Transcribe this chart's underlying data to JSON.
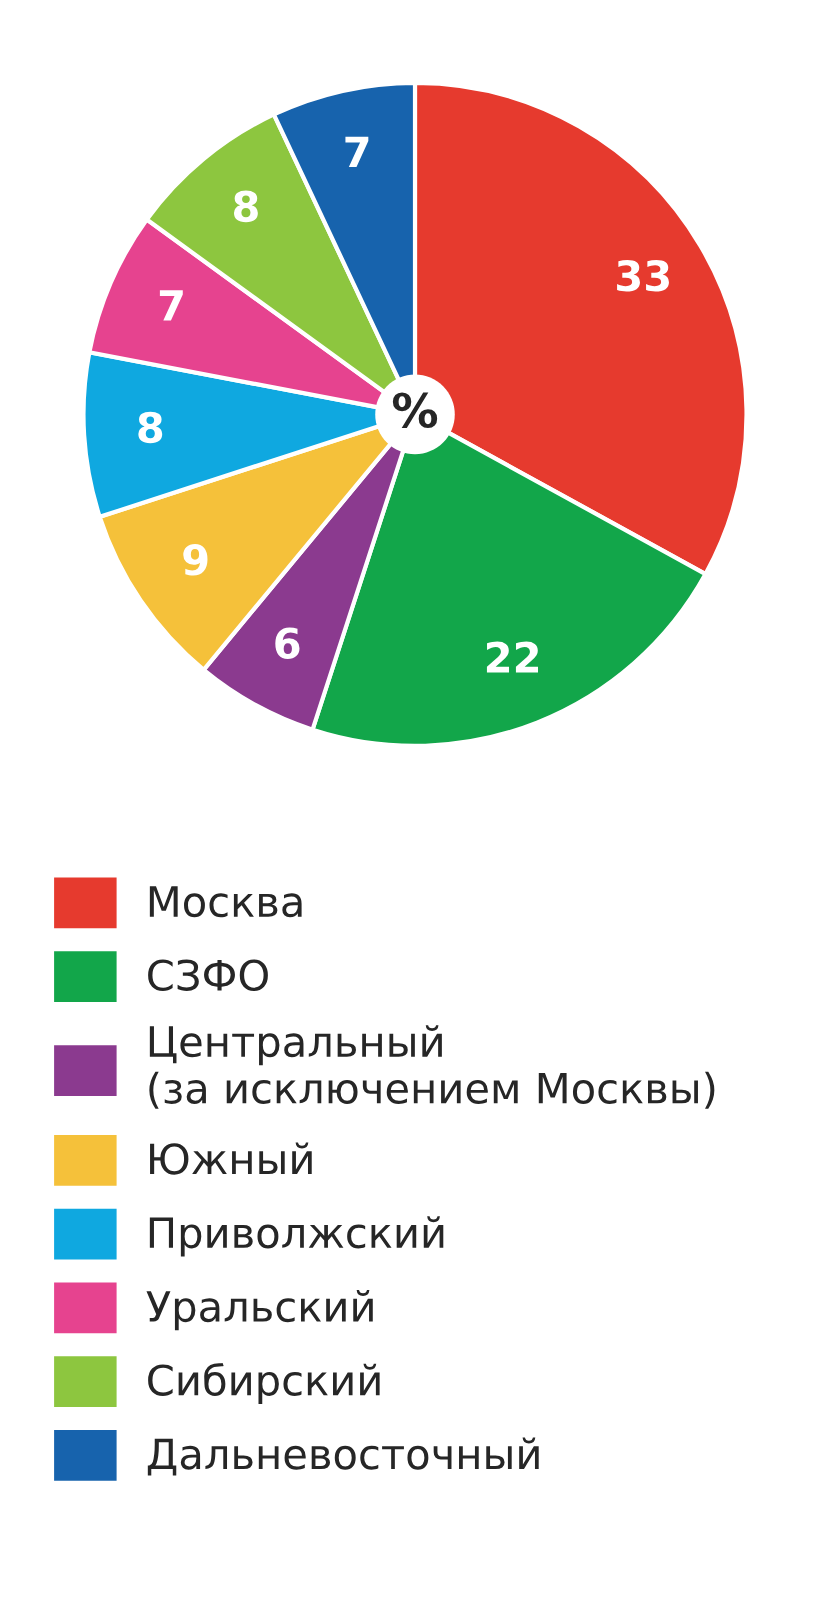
{
  "chart_data": {
    "type": "pie",
    "categories": [
      "Москва",
      "СЗФО",
      "Центральный\n(за исключением Москвы)",
      "Южный",
      "Приволжский",
      "Уральский",
      "Сибирский",
      "Дальневосточный"
    ],
    "values": [
      33,
      22,
      6,
      9,
      8,
      7,
      8,
      7
    ],
    "colors": [
      "#e63a2e",
      "#12a64a",
      "#8b3a8f",
      "#f5c13a",
      "#0fa8e0",
      "#e6438f",
      "#8dc63f",
      "#1763ad"
    ],
    "data_labels": true,
    "legend": "bottom",
    "annotations": [
      "%"
    ]
  }
}
